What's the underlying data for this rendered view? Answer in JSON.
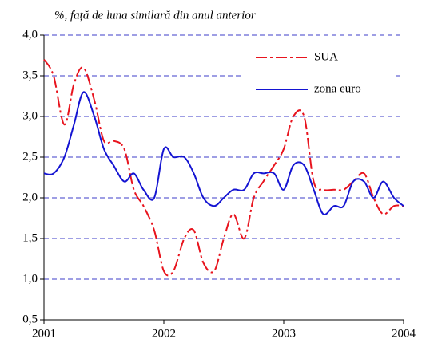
{
  "chart_data": {
    "type": "line",
    "ylabel": "%, față de luna similară din anul anterior",
    "x": [
      2001,
      2001.08,
      2001.17,
      2001.25,
      2001.33,
      2001.42,
      2001.5,
      2001.58,
      2001.67,
      2001.75,
      2001.83,
      2001.92,
      2002,
      2002.08,
      2002.17,
      2002.25,
      2002.33,
      2002.42,
      2002.5,
      2002.58,
      2002.67,
      2002.75,
      2002.83,
      2002.92,
      2003,
      2003.08,
      2003.17,
      2003.25,
      2003.33,
      2003.42,
      2003.5,
      2003.58,
      2003.67,
      2003.75,
      2003.83,
      2003.92,
      2004
    ],
    "series": [
      {
        "name": "SUA",
        "color": "#e8141e",
        "dash": "dashdot",
        "values": [
          3.7,
          3.5,
          2.9,
          3.4,
          3.6,
          3.2,
          2.7,
          2.7,
          2.6,
          2.1,
          1.9,
          1.6,
          1.1,
          1.1,
          1.5,
          1.6,
          1.2,
          1.1,
          1.5,
          1.8,
          1.5,
          2.0,
          2.2,
          2.4,
          2.6,
          3.0,
          3.0,
          2.2,
          2.1,
          2.1,
          2.1,
          2.2,
          2.3,
          2.0,
          1.8,
          1.9,
          1.9
        ]
      },
      {
        "name": "zona euro",
        "color": "#1414d2",
        "dash": "solid",
        "values": [
          2.3,
          2.3,
          2.5,
          2.9,
          3.3,
          3.0,
          2.6,
          2.4,
          2.2,
          2.3,
          2.1,
          2.0,
          2.6,
          2.5,
          2.5,
          2.3,
          2.0,
          1.9,
          2.0,
          2.1,
          2.1,
          2.3,
          2.3,
          2.3,
          2.1,
          2.4,
          2.4,
          2.1,
          1.8,
          1.9,
          1.9,
          2.2,
          2.2,
          2.0,
          2.2,
          2.0,
          1.9
        ]
      }
    ],
    "xlim": [
      2001,
      2004
    ],
    "xticks": [
      2001,
      2002,
      2003,
      2004
    ],
    "ylim": [
      0.5,
      4.0
    ],
    "yticks": [
      {
        "value": 0.5,
        "label": "0,5"
      },
      {
        "value": 1.0,
        "label": "1,0"
      },
      {
        "value": 1.5,
        "label": "1,5"
      },
      {
        "value": 2.0,
        "label": "2,0"
      },
      {
        "value": 2.5,
        "label": "2,5"
      },
      {
        "value": 3.0,
        "label": "3,0"
      },
      {
        "value": 3.5,
        "label": "3,5"
      },
      {
        "value": 4.0,
        "label": "4,0"
      }
    ],
    "grid": true,
    "grid_color": "#3c3cc8",
    "legend": "upper right"
  }
}
